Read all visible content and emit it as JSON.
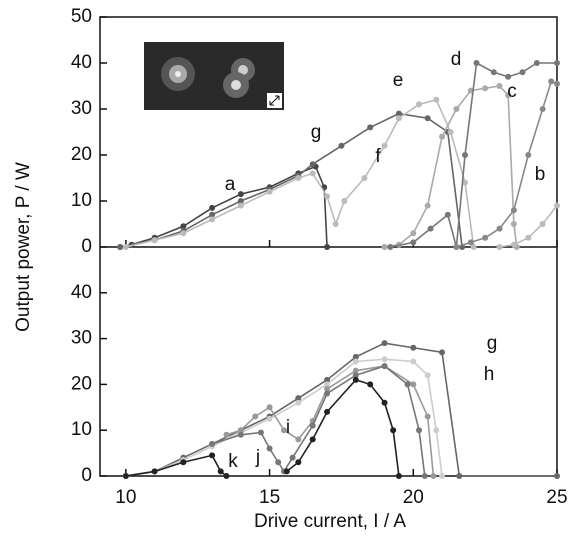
{
  "chart_data": [
    {
      "type": "line",
      "y_label": "Output power, P / W",
      "xlim": [
        9.1,
        25
      ],
      "xticks": [
        10,
        15,
        20,
        25
      ],
      "ylim": [
        0,
        50
      ],
      "yticks": [
        0,
        10,
        20,
        30,
        40,
        50
      ],
      "series": [
        {
          "name": "a",
          "color": "#444444",
          "x": [
            9.8,
            10.2,
            11,
            12,
            13,
            14,
            15,
            16,
            16.6,
            16.9,
            17.0
          ],
          "values": [
            0,
            0.5,
            2,
            4.5,
            8.5,
            11.5,
            13,
            16,
            17.5,
            13,
            0
          ]
        },
        {
          "name": "g",
          "color": "#666666",
          "x": [
            9.8,
            11,
            12,
            13,
            14,
            15,
            16,
            16.5,
            17.5,
            18.5,
            19.5,
            20.5,
            21.2,
            21.7
          ],
          "values": [
            0,
            1.5,
            3.5,
            7,
            10,
            12.5,
            15.5,
            18,
            22,
            26,
            29,
            28,
            25,
            0
          ]
        },
        {
          "name": "f",
          "color": "#bbbbbb",
          "x": [
            10,
            11,
            12,
            13,
            14,
            15,
            16,
            16.5,
            17,
            17.3,
            17.6,
            18.3,
            19,
            19.5,
            20.2,
            20.8,
            21.3,
            21.8,
            22.1
          ],
          "values": [
            0,
            1.5,
            3,
            6,
            9,
            12,
            15,
            16,
            11,
            5,
            10,
            15,
            22,
            28,
            31,
            32,
            25,
            14,
            0
          ]
        },
        {
          "name": "e",
          "color": "#aaaaaa",
          "x": [
            19.0,
            19.5,
            20,
            20.5,
            21,
            21.5,
            22,
            22.5,
            23,
            23.3,
            23.5,
            23.6
          ],
          "values": [
            0,
            0.5,
            3,
            9,
            24,
            30,
            34,
            34.5,
            35,
            33,
            5,
            0
          ]
        },
        {
          "name": "d",
          "color": "#777777",
          "x": [
            19.2,
            20,
            20.6,
            21.2,
            21.5,
            21.8,
            22.2,
            22.8,
            23.3,
            23.8,
            24.3,
            25
          ],
          "values": [
            0,
            1,
            4,
            7,
            0,
            20,
            40,
            38,
            37,
            38,
            40,
            40
          ]
        },
        {
          "name": "c",
          "color": "#888888",
          "x": [
            21.5,
            22,
            22.5,
            23,
            23.5,
            24,
            24.5,
            24.8,
            25
          ],
          "values": [
            0,
            1,
            2,
            4,
            8,
            20,
            30,
            36,
            35.5
          ]
        },
        {
          "name": "b",
          "color": "#bbbbbb",
          "x": [
            23,
            23.5,
            24,
            24.5,
            25
          ],
          "values": [
            0,
            0.5,
            2,
            5,
            9
          ]
        }
      ]
    },
    {
      "type": "line",
      "x_label": "Drive current, I / A",
      "xlim": [
        9.1,
        25
      ],
      "xticks": [
        10,
        15,
        20,
        25
      ],
      "ylim": [
        0,
        50
      ],
      "yticks": [
        0,
        10,
        20,
        30,
        40
      ],
      "series": [
        {
          "name": "g",
          "color": "#666666",
          "x": [
            10,
            11,
            12,
            13,
            14,
            15,
            16,
            17,
            18,
            19,
            20,
            21,
            21.6,
            25
          ],
          "values": [
            0,
            1,
            4,
            7,
            10,
            13,
            17,
            21,
            26,
            29,
            28,
            27,
            0,
            0
          ]
        },
        {
          "name": "h",
          "color": "#cccccc",
          "x": [
            10,
            11,
            12,
            13,
            14,
            15,
            16,
            17,
            18,
            19,
            20,
            20.5,
            20.8,
            21
          ],
          "values": [
            0,
            1,
            3.5,
            6.5,
            9.5,
            12.5,
            16,
            20,
            25,
            25.5,
            25,
            22,
            10,
            0
          ]
        },
        {
          "name": "i",
          "color": "#999999",
          "x": [
            13.5,
            14,
            14.5,
            15,
            15.5,
            16,
            16.5,
            17,
            18,
            19,
            20,
            20.5,
            20.7
          ],
          "values": [
            9,
            10,
            13,
            15,
            10,
            8,
            12,
            19,
            23,
            24,
            20,
            13,
            0
          ]
        },
        {
          "name": "j",
          "color": "#777777",
          "x": [
            13,
            14,
            14.7,
            15,
            15.3,
            15.5,
            15.8,
            16.5,
            17,
            18,
            19,
            19.8,
            20.2,
            20.4
          ],
          "values": [
            7,
            9,
            9.5,
            6,
            3,
            1,
            4,
            11,
            18,
            22,
            24,
            20,
            10,
            0
          ]
        },
        {
          "name": "k",
          "color": "#222222",
          "x": [
            10,
            11,
            12,
            13,
            13.3,
            13.5,
            15.4,
            15.6,
            16,
            16.5,
            17,
            18,
            18.5,
            19,
            19.3,
            19.5
          ],
          "values": [
            0,
            1,
            3,
            4.5,
            1,
            0,
            null,
            1,
            3,
            8,
            14,
            21,
            20,
            16,
            10,
            0
          ]
        }
      ]
    }
  ]
}
